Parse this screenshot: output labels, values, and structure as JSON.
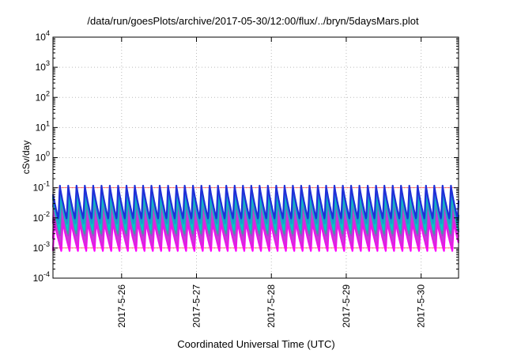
{
  "chart_data": {
    "type": "line",
    "title": "/data/run/goesPlots/archive/2017-05-30/12:00/flux/../bryn/5daysMars.plot",
    "xlabel": "Coordinated Universal Time (UTC)",
    "ylabel": "cSv/day",
    "y_scale": "log",
    "ylim": [
      0.0001,
      10000
    ],
    "y_ticks": [
      {
        "mantissa": "10",
        "exp": "-4",
        "value": 0.0001
      },
      {
        "mantissa": "10",
        "exp": "-3",
        "value": 0.001
      },
      {
        "mantissa": "10",
        "exp": "-2",
        "value": 0.01
      },
      {
        "mantissa": "10",
        "exp": "-1",
        "value": 0.1
      },
      {
        "mantissa": "10",
        "exp": "0",
        "value": 1
      },
      {
        "mantissa": "10",
        "exp": "1",
        "value": 10
      },
      {
        "mantissa": "10",
        "exp": "2",
        "value": 100
      },
      {
        "mantissa": "10",
        "exp": "3",
        "value": 1000
      },
      {
        "mantissa": "10",
        "exp": "4",
        "value": 10000
      }
    ],
    "x_range": [
      "2017-05-25 02:00",
      "2017-05-30 12:00"
    ],
    "x_ticks": [
      "2017-5-26",
      "2017-5-27",
      "2017-5-28",
      "2017-5-29",
      "2017-5-30"
    ],
    "grid": true,
    "oscillation": {
      "cycles_per_day": 9,
      "peak_value": 0.12,
      "trough_value": 0.001
    },
    "series": [
      {
        "color": "#1f2fd8",
        "peak": 0.12,
        "trough": 0.009
      },
      {
        "color": "#1a9ad0",
        "peak": 0.09,
        "trough": 0.006
      },
      {
        "color": "#00c8c8",
        "peak": 0.07,
        "trough": 0.004
      },
      {
        "color": "#3aa0a0",
        "peak": 0.05,
        "trough": 0.003
      },
      {
        "color": "#9a4ad0",
        "peak": 0.035,
        "trough": 0.0025
      },
      {
        "color": "#c83cd8",
        "peak": 0.02,
        "trough": 0.0016
      },
      {
        "color": "#e020e0",
        "peak": 0.012,
        "trough": 0.001
      },
      {
        "color": "#ff00ff",
        "peak": 0.008,
        "trough": 0.0008
      }
    ],
    "reference_lines": [
      {
        "color": "#ff0000",
        "value": 0.1
      },
      {
        "color": "#ff0000",
        "value": 0.001
      }
    ]
  }
}
